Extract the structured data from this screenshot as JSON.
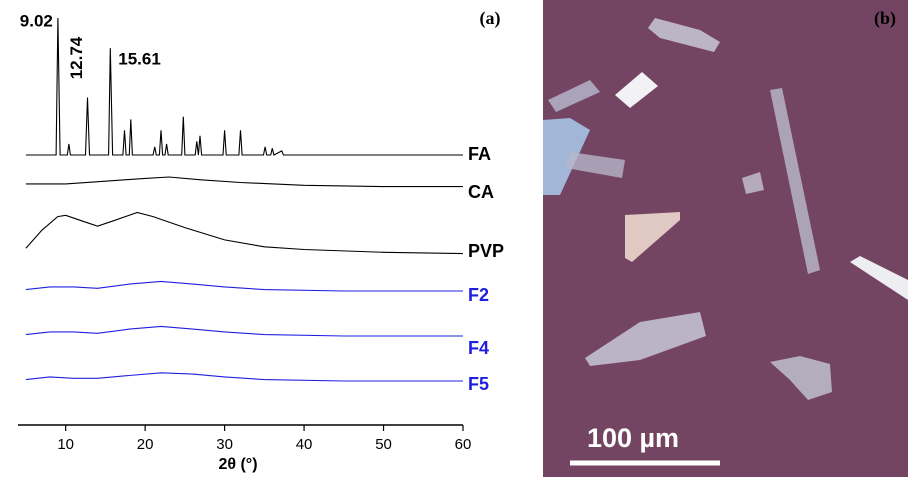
{
  "chart_data": {
    "type": "line",
    "panel_label": "(a)",
    "xlabel": "2θ (°)",
    "xlim": [
      4,
      60
    ],
    "xticks": [
      10,
      20,
      30,
      40,
      50,
      60
    ],
    "peak_labels": [
      9.02,
      12.74,
      15.61
    ],
    "series": [
      {
        "name": "FA",
        "color": "#000000",
        "x": [
          5,
          8.8,
          9.02,
          9.3,
          10.2,
          10.4,
          10.6,
          12.5,
          12.74,
          13.0,
          15.4,
          15.61,
          15.9,
          17.2,
          17.4,
          17.6,
          18.0,
          18.2,
          18.4,
          21.0,
          21.2,
          21.4,
          21.8,
          22.0,
          22.2,
          22.5,
          22.7,
          22.9,
          24.6,
          24.8,
          25.0,
          26.3,
          26.5,
          26.7,
          26.9,
          27.1,
          29.8,
          30.0,
          30.2,
          31.8,
          32.0,
          32.2,
          34.9,
          35.1,
          35.3,
          35.8,
          36.0,
          36.2,
          37.2,
          37.4,
          60
        ],
        "values": [
          0,
          0,
          100,
          0,
          0,
          8,
          0,
          0,
          42,
          0,
          0,
          78,
          0,
          0,
          18,
          0,
          0,
          26,
          0,
          0,
          6,
          0,
          0,
          18,
          0,
          0,
          8,
          0,
          0,
          28,
          0,
          0,
          10,
          0,
          14,
          0,
          0,
          18,
          0,
          0,
          18,
          0,
          0,
          6,
          0,
          0,
          5,
          0,
          3,
          0,
          0
        ]
      },
      {
        "name": "CA",
        "color": "#000000",
        "x": [
          5,
          10,
          15,
          20,
          23,
          27,
          32,
          40,
          50,
          60
        ],
        "values": [
          3,
          3,
          5,
          7,
          8,
          6,
          4,
          2,
          1,
          1
        ]
      },
      {
        "name": "PVP",
        "color": "#000000",
        "x": [
          5,
          7,
          9,
          10,
          12,
          14,
          16,
          19,
          21,
          25,
          30,
          35,
          40,
          50,
          60
        ],
        "values": [
          5,
          18,
          28,
          29,
          25,
          21,
          25,
          31,
          28,
          20,
          11,
          6,
          4,
          2,
          1
        ]
      },
      {
        "name": "F2",
        "color": "#1f1fe0",
        "x": [
          5,
          8,
          11,
          14,
          18,
          22,
          26,
          30,
          35,
          45,
          60
        ],
        "values": [
          1,
          3,
          3,
          2,
          5,
          7,
          5,
          3,
          1,
          0,
          0
        ]
      },
      {
        "name": "F4",
        "color": "#1f1fe0",
        "x": [
          5,
          8,
          11,
          14,
          18,
          22,
          26,
          30,
          35,
          45,
          60
        ],
        "values": [
          1,
          3,
          3,
          2,
          5,
          7,
          5,
          3,
          1,
          0,
          0
        ]
      },
      {
        "name": "F5",
        "color": "#1f1fe0",
        "x": [
          5,
          8,
          11,
          14,
          18,
          22,
          26,
          30,
          35,
          45,
          60
        ],
        "values": [
          1,
          3,
          2,
          2,
          4,
          6,
          5,
          3,
          1,
          0,
          0
        ]
      }
    ]
  },
  "image_panel": {
    "panel_label": "(b)",
    "scale_bar": "100 µm"
  }
}
